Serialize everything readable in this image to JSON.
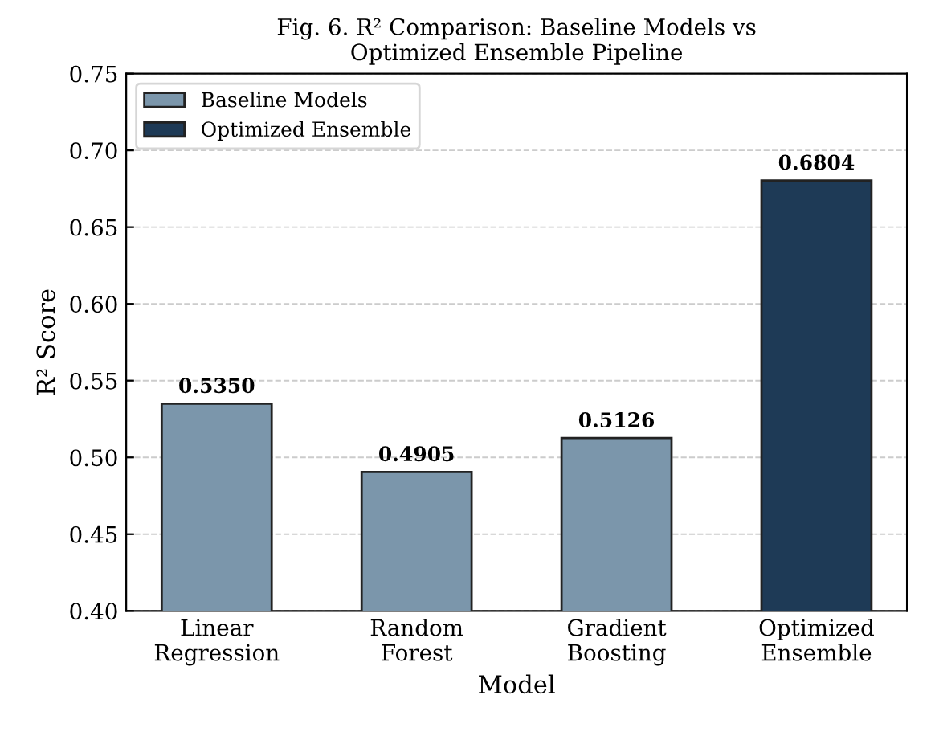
{
  "chart_data": {
    "type": "bar",
    "title": "Fig. 6. R² Comparison: Baseline Models vs\nOptimized Ensemble Pipeline",
    "xlabel": "Model",
    "ylabel": "R² Score",
    "categories": [
      "Linear\nRegression",
      "Random\nForest",
      "Gradient\nBoosting",
      "Optimized\nEnsemble"
    ],
    "series": [
      {
        "name": "Baseline Models",
        "color": "#7b96ab",
        "values": [
          0.535,
          0.4905,
          0.5126,
          null
        ]
      },
      {
        "name": "Optimized Ensemble",
        "color": "#1e3a56",
        "values": [
          null,
          null,
          null,
          0.6804
        ]
      }
    ],
    "ylim": [
      0.4,
      0.75
    ],
    "yticks": [
      {
        "value": 0.4,
        "label": "0.40"
      },
      {
        "value": 0.45,
        "label": "0.45"
      },
      {
        "value": 0.5,
        "label": "0.50"
      },
      {
        "value": 0.55,
        "label": "0.55"
      },
      {
        "value": 0.6,
        "label": "0.60"
      },
      {
        "value": 0.65,
        "label": "0.65"
      },
      {
        "value": 0.7,
        "label": "0.70"
      },
      {
        "value": 0.75,
        "label": "0.75"
      }
    ],
    "value_labels": [
      "0.5350",
      "0.4905",
      "0.5126",
      "0.6804"
    ],
    "grid": "y",
    "legend": "top left"
  }
}
